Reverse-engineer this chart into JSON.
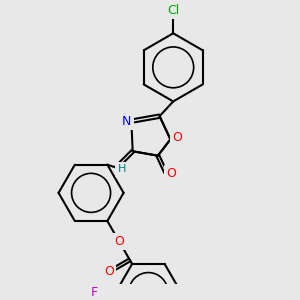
{
  "background_color": "#e8e8e8",
  "bond_color": "#000000",
  "atom_colors": {
    "Cl": "#00aa00",
    "O": "#ff0000",
    "N": "#0000ff",
    "F": "#cc00cc",
    "H": "#008080",
    "C": "#000000"
  },
  "bond_width": 1.5,
  "figsize": [
    3.0,
    3.0
  ],
  "dpi": 100
}
